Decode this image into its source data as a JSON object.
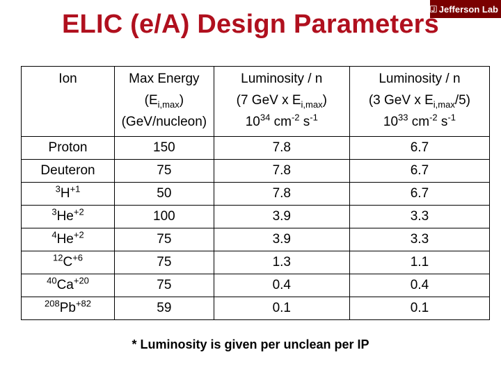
{
  "slide": {
    "title": "ELIC (e/A) Design Parameters",
    "logo_text": "Jefferson Lab",
    "note": "* Luminosity is given per unclean per IP"
  },
  "table": {
    "headers": {
      "ion": "Ion",
      "max_energy": {
        "line1": "Max Energy",
        "line2_a": "(E",
        "line2_sub": "i,max",
        "line2_b": ")",
        "line3": "(GeV/nucleon)"
      },
      "lumi7": {
        "line1": "Luminosity / n",
        "line2_a": "(7 GeV x E",
        "line2_sub": "i,max",
        "line2_b": ")",
        "line3_a": "10",
        "line3_sup1": "34",
        "line3_b": " cm",
        "line3_sup2": "-2",
        "line3_c": " s",
        "line3_sup3": "-1"
      },
      "lumi3": {
        "line1": "Luminosity / n",
        "line2_a": "(3 GeV x E",
        "line2_sub": "i,max",
        "line2_b": "/5)",
        "line3_a": "10",
        "line3_sup1": "33",
        "line3_b": " cm",
        "line3_sup2": "-2",
        "line3_c": " s",
        "line3_sup3": "-1"
      }
    },
    "rows": [
      {
        "ion_pre": "",
        "ion": "Proton",
        "ion_post": "",
        "max_energy": "150",
        "lumi7": "7.8",
        "lumi3": "6.7"
      },
      {
        "ion_pre": "",
        "ion": "Deuteron",
        "ion_post": "",
        "max_energy": "75",
        "lumi7": "7.8",
        "lumi3": "6.7"
      },
      {
        "ion_pre": "3",
        "ion": "H",
        "ion_post": "+1",
        "max_energy": "50",
        "lumi7": "7.8",
        "lumi3": "6.7"
      },
      {
        "ion_pre": "3",
        "ion": "He",
        "ion_post": "+2",
        "max_energy": "100",
        "lumi7": "3.9",
        "lumi3": "3.3"
      },
      {
        "ion_pre": "4",
        "ion": "He",
        "ion_post": "+2",
        "max_energy": "75",
        "lumi7": "3.9",
        "lumi3": "3.3"
      },
      {
        "ion_pre": "12",
        "ion": "C",
        "ion_post": "+6",
        "max_energy": "75",
        "lumi7": "1.3",
        "lumi3": "1.1"
      },
      {
        "ion_pre": "40",
        "ion": "Ca",
        "ion_post": "+20",
        "max_energy": "75",
        "lumi7": "0.4",
        "lumi3": "0.4"
      },
      {
        "ion_pre": "208",
        "ion": "Pb",
        "ion_post": "+82",
        "max_energy": "59",
        "lumi7": "0.1",
        "lumi3": "0.1"
      }
    ]
  }
}
